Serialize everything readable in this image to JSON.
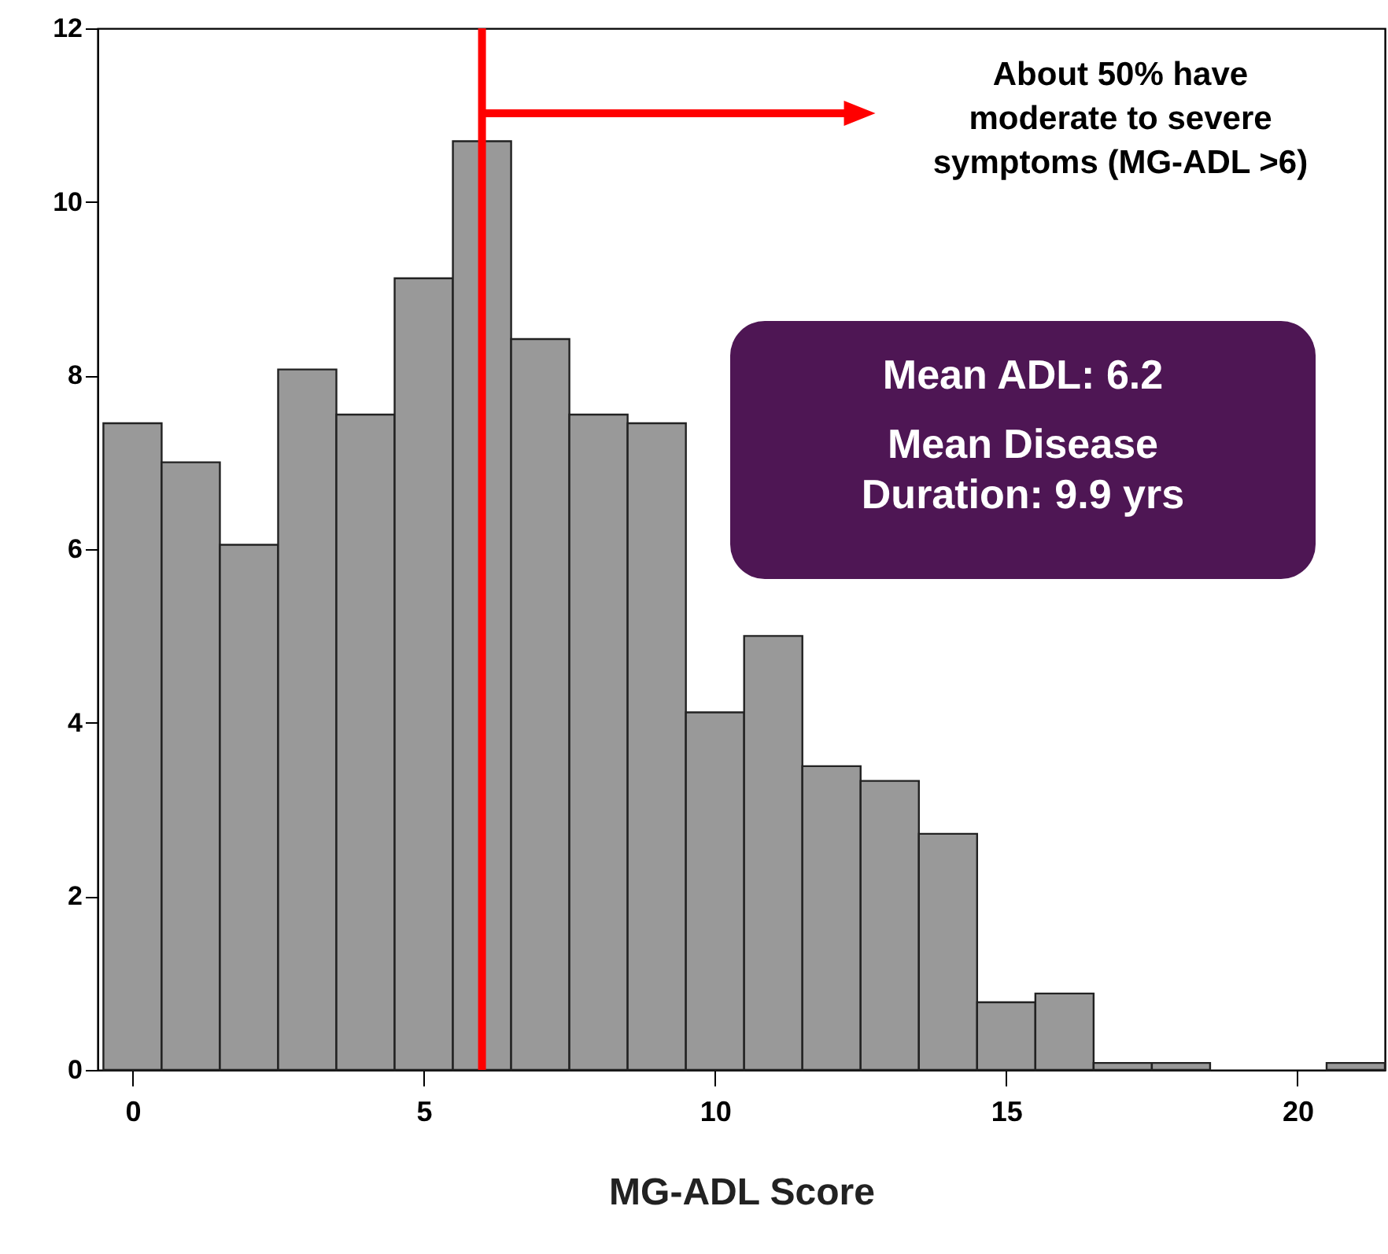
{
  "chart_data": {
    "type": "histogram",
    "xlabel": "MG-ADL Score",
    "bins": [
      -0.5,
      0.5,
      1.5,
      2.5,
      3.5,
      4.5,
      5.5,
      6.5,
      7.5,
      8.5,
      9.5,
      10.5,
      11.5,
      12.5,
      13.5,
      14.5,
      15.5,
      16.5,
      17.5,
      18.5,
      19.5,
      20.5,
      21.5
    ],
    "values": [
      7.45,
      7.0,
      6.05,
      8.07,
      7.55,
      9.12,
      10.7,
      8.42,
      7.55,
      7.45,
      4.12,
      5.0,
      3.5,
      3.33,
      2.72,
      0.78,
      0.88,
      0.08,
      0.08,
      0,
      0,
      0.08
    ],
    "color": "#999999",
    "xlim": [
      -0.6,
      21.5
    ],
    "ylim": [
      0,
      12
    ],
    "xticks": [
      0,
      5,
      10,
      15,
      20
    ],
    "yticks": [
      0,
      2,
      4,
      6,
      8,
      10,
      12
    ],
    "grid": false,
    "ref_lines": [
      {
        "axis": "x",
        "value": 6,
        "color": "#ff0000"
      }
    ],
    "annotations": [
      "About 50% have moderate to severe symptoms (MG-ADL >6)",
      "Mean ADL: 6.2",
      "Mean Disease Duration: 9.9 yrs"
    ]
  }
}
